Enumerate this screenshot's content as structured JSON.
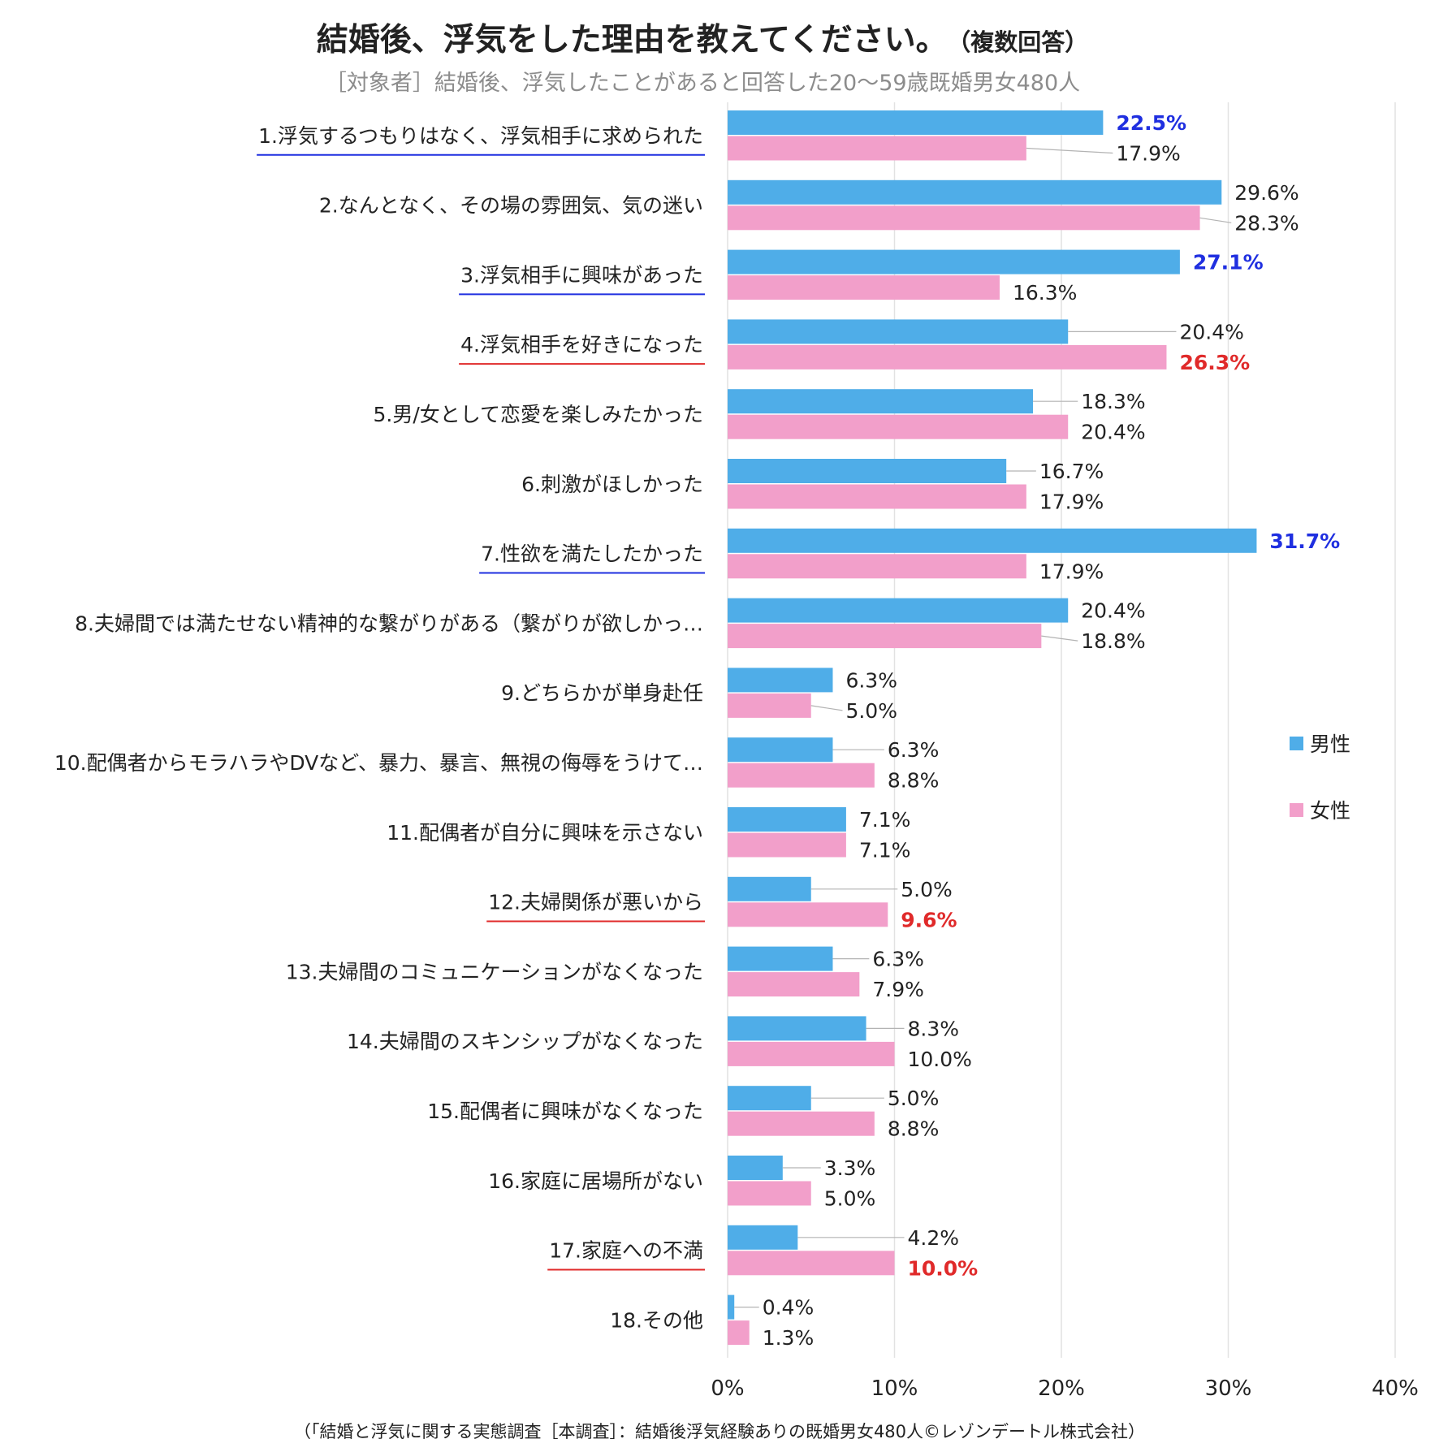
{
  "title": "結婚後、浮気をした理由を教えてください。",
  "title_note": "（複数回答）",
  "subtitle": "［対象者］結婚後、浮気したことがあると回答した20～59歳既婚男女480人",
  "source": "（「結婚と浮気に関する実態調査［本調査］：結婚後浮気経験ありの既婚男女480人©レゾンデートル株式会社）",
  "legend": {
    "male": "男性",
    "female": "女性"
  },
  "colors": {
    "male": "#4fade8",
    "female": "#f29fca",
    "highlight_male": "#1f2fe0",
    "highlight_female": "#e02a2a",
    "leader": "#b3b3b3",
    "grid": "#e2e2e2",
    "text": "#222222"
  },
  "chart_data": {
    "type": "bar",
    "orientation": "horizontal",
    "title": "結婚後、浮気をした理由を教えてください。",
    "xlim": [
      0,
      40
    ],
    "xticks": [
      "0%",
      "10%",
      "20%",
      "30%",
      "40%"
    ],
    "legend_position": "right",
    "grid": true,
    "categories": [
      "1.浮気するつもりはなく、浮気相手に求められた",
      "2.なんとなく、その場の雰囲気、気の迷い",
      "3.浮気相手に興味があった",
      "4.浮気相手を好きになった",
      "5.男/女として恋愛を楽しみたかった",
      "6.刺激がほしかった",
      "7.性欲を満たしたかった",
      "8.夫婦間では満たせない精神的な繋がりがある（繋がりが欲しかっ…",
      "9.どちらかが単身赴任",
      "10.配偶者からモラハラやDVなど、暴力、暴言、無視の侮辱をうけて…",
      "11.配偶者が自分に興味を示さない",
      "12.夫婦関係が悪いから",
      "13.夫婦間のコミュニケーションがなくなった",
      "14.夫婦間のスキンシップがなくなった",
      "15.配偶者に興味がなくなった",
      "16.家庭に居場所がない",
      "17.家庭への不満",
      "18.その他"
    ],
    "underline": [
      "male",
      null,
      "male",
      "female",
      null,
      null,
      "male",
      null,
      null,
      null,
      null,
      "female",
      null,
      null,
      null,
      null,
      "female",
      null
    ],
    "series": [
      {
        "name": "男性",
        "key": "male",
        "values": [
          22.5,
          29.6,
          27.1,
          20.4,
          18.3,
          16.7,
          31.7,
          20.4,
          6.3,
          6.3,
          7.1,
          5.0,
          6.3,
          8.3,
          5.0,
          3.3,
          4.2,
          0.4
        ],
        "labels": [
          "22.5%",
          "29.6%",
          "27.1%",
          "20.4%",
          "18.3%",
          "16.7%",
          "31.7%",
          "20.4%",
          "6.3%",
          "6.3%",
          "7.1%",
          "5.0%",
          "6.3%",
          "8.3%",
          "5.0%",
          "3.3%",
          "4.2%",
          "0.4%"
        ],
        "highlight": [
          true,
          false,
          true,
          false,
          false,
          false,
          true,
          false,
          false,
          false,
          false,
          false,
          false,
          false,
          false,
          false,
          false,
          false
        ]
      },
      {
        "name": "女性",
        "key": "female",
        "values": [
          17.9,
          28.3,
          16.3,
          26.3,
          20.4,
          17.9,
          17.9,
          18.8,
          5.0,
          8.8,
          7.1,
          9.6,
          7.9,
          10.0,
          8.8,
          5.0,
          10.0,
          1.3
        ],
        "labels": [
          "17.9%",
          "28.3%",
          "16.3%",
          "26.3%",
          "20.4%",
          "17.9%",
          "17.9%",
          "18.8%",
          "5.0%",
          "8.8%",
          "7.1%",
          "9.6%",
          "7.9%",
          "10.0%",
          "8.8%",
          "5.0%",
          "10.0%",
          "1.3%"
        ],
        "highlight": [
          false,
          false,
          false,
          true,
          false,
          false,
          false,
          false,
          false,
          false,
          false,
          true,
          false,
          false,
          false,
          false,
          true,
          false
        ]
      }
    ]
  }
}
